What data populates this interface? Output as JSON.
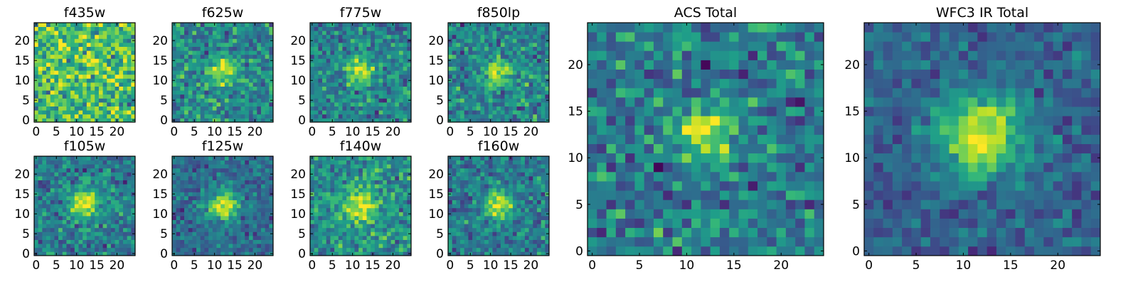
{
  "chart_data": [
    {
      "type": "heatmap",
      "title": "f435w",
      "xticks": [
        0,
        5,
        10,
        15,
        20
      ],
      "yticks": [
        0,
        5,
        10,
        15,
        20
      ],
      "xlim": [
        -0.5,
        24.5
      ],
      "ylim": [
        -0.5,
        24.5
      ],
      "source_x": 12,
      "source_y": 12,
      "source_strength": 0.08,
      "source_width": 3.0,
      "background": 0.7,
      "noise": 0.17,
      "seed": 11
    },
    {
      "type": "heatmap",
      "title": "f625w",
      "xticks": [
        0,
        5,
        10,
        15,
        20
      ],
      "yticks": [
        0,
        5,
        10,
        15,
        20
      ],
      "xlim": [
        -0.5,
        24.5
      ],
      "ylim": [
        -0.5,
        24.5
      ],
      "source_x": 12,
      "source_y": 12.5,
      "source_strength": 0.45,
      "source_width": 2.3,
      "background": 0.48,
      "noise": 0.14,
      "seed": 23
    },
    {
      "type": "heatmap",
      "title": "f775w",
      "xticks": [
        0,
        5,
        10,
        15,
        20
      ],
      "yticks": [
        0,
        5,
        10,
        15,
        20
      ],
      "xlim": [
        -0.5,
        24.5
      ],
      "ylim": [
        -0.5,
        24.5
      ],
      "source_x": 12,
      "source_y": 12.5,
      "source_strength": 0.5,
      "source_width": 2.3,
      "background": 0.45,
      "noise": 0.13,
      "seed": 37
    },
    {
      "type": "heatmap",
      "title": "f850lp",
      "xticks": [
        0,
        5,
        10,
        15,
        20
      ],
      "yticks": [
        0,
        5,
        10,
        15,
        20
      ],
      "xlim": [
        -0.5,
        24.5
      ],
      "ylim": [
        -0.5,
        24.5
      ],
      "source_x": 12,
      "source_y": 12,
      "source_strength": 0.5,
      "source_width": 2.3,
      "background": 0.45,
      "noise": 0.14,
      "seed": 41
    },
    {
      "type": "heatmap",
      "title": "f105w",
      "xticks": [
        0,
        5,
        10,
        15,
        20
      ],
      "yticks": [
        0,
        5,
        10,
        15,
        20
      ],
      "xlim": [
        -0.5,
        24.5
      ],
      "ylim": [
        -0.5,
        24.5
      ],
      "source_x": 12,
      "source_y": 12.5,
      "source_strength": 0.55,
      "source_width": 2.6,
      "background": 0.42,
      "noise": 0.12,
      "seed": 53
    },
    {
      "type": "heatmap",
      "title": "f125w",
      "xticks": [
        0,
        5,
        10,
        15,
        20
      ],
      "yticks": [
        0,
        5,
        10,
        15,
        20
      ],
      "xlim": [
        -0.5,
        24.5
      ],
      "ylim": [
        -0.5,
        24.5
      ],
      "source_x": 12,
      "source_y": 12,
      "source_strength": 0.6,
      "source_width": 2.7,
      "background": 0.35,
      "noise": 0.1,
      "seed": 67
    },
    {
      "type": "heatmap",
      "title": "f140w",
      "xticks": [
        0,
        5,
        10,
        15,
        20
      ],
      "yticks": [
        0,
        5,
        10,
        15,
        20
      ],
      "xlim": [
        -0.5,
        24.5
      ],
      "ylim": [
        -0.5,
        24.5
      ],
      "source_x": 12,
      "source_y": 12,
      "source_strength": 0.45,
      "source_width": 3.0,
      "background": 0.5,
      "noise": 0.13,
      "seed": 79
    },
    {
      "type": "heatmap",
      "title": "f160w",
      "xticks": [
        0,
        5,
        10,
        15,
        20
      ],
      "yticks": [
        0,
        5,
        10,
        15,
        20
      ],
      "xlim": [
        -0.5,
        24.5
      ],
      "ylim": [
        -0.5,
        24.5
      ],
      "source_x": 12,
      "source_y": 12,
      "source_strength": 0.6,
      "source_width": 2.5,
      "background": 0.4,
      "noise": 0.12,
      "seed": 83
    },
    {
      "type": "heatmap",
      "title": "ACS Total",
      "xticks": [
        0,
        5,
        10,
        15,
        20
      ],
      "yticks": [
        0,
        5,
        10,
        15,
        20
      ],
      "xlim": [
        -0.5,
        24.5
      ],
      "ylim": [
        -0.5,
        24.5
      ],
      "source_x": 12,
      "source_y": 12.5,
      "source_strength": 0.55,
      "source_width": 2.0,
      "background": 0.42,
      "noise": 0.14,
      "seed": 97
    },
    {
      "type": "heatmap",
      "title": "WFC3 IR Total",
      "xticks": [
        0,
        5,
        10,
        15,
        20
      ],
      "yticks": [
        0,
        5,
        10,
        15,
        20
      ],
      "xlim": [
        -0.5,
        24.5
      ],
      "ylim": [
        -0.5,
        24.5
      ],
      "source_x": 12,
      "source_y": 12.5,
      "source_strength": 0.65,
      "source_width": 3.0,
      "background": 0.32,
      "noise": 0.09,
      "seed": 101
    }
  ],
  "colormap": "viridis"
}
